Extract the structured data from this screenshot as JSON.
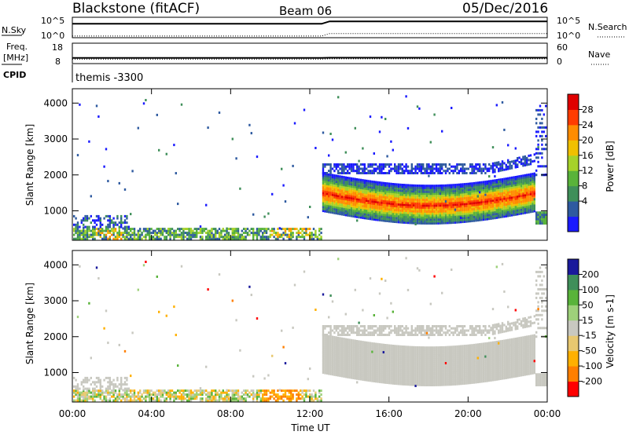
{
  "header": {
    "station": "Blackstone (fitACF)",
    "beam": "Beam 06",
    "date": "05/Dec/2016"
  },
  "colors": {
    "power_scale": [
      "#1a1aff",
      "#2e5aa0",
      "#3f8f5a",
      "#59b33a",
      "#a6d22a",
      "#f0c000",
      "#ff8c00",
      "#ff3c00",
      "#e00000"
    ],
    "velocity_scale": [
      "#ff0000",
      "#ff7f00",
      "#ffb000",
      "#e8c870",
      "#c8c8c0",
      "#9ed07a",
      "#59b33a",
      "#3f8f5a",
      "#1a1a9c"
    ],
    "ground_scatter": "#c8c8c0"
  },
  "chart_data": [
    {
      "type": "line",
      "panel": "noise",
      "left_label": "N.Sky",
      "right_label": "N.Search",
      "left_ticks": [
        "10^5",
        "10^0"
      ],
      "right_ticks": [
        "10^5",
        "10^0"
      ],
      "x": [
        0,
        12.6,
        13,
        24
      ],
      "series": [
        {
          "name": "N.Sky",
          "values": [
            3.4,
            3.4,
            4.0,
            4.0
          ]
        },
        {
          "name": "N.Search",
          "values": [
            0.4,
            0.4,
            1.0,
            1.0
          ]
        }
      ]
    },
    {
      "type": "line",
      "panel": "frequency",
      "left_label": "Freq.",
      "left_unit": "[MHz]",
      "right_label": "Nave",
      "left_ticks": [
        "18",
        "8"
      ],
      "right_ticks": [
        "60",
        "0"
      ],
      "x": [
        0,
        12.6,
        13,
        24
      ],
      "series": [
        {
          "name": "Freq.",
          "values": [
            10.8,
            10.8,
            10.9,
            10.9
          ]
        },
        {
          "name": "Nave",
          "values": [
            13,
            13,
            14,
            14
          ]
        }
      ]
    },
    {
      "type": "text",
      "panel": "cpid",
      "left_label": "CPID",
      "text": "themis -3300"
    },
    {
      "type": "heatmap",
      "panel": "power",
      "ylabel": "Slant Range [km]",
      "colorbar_label": "Power [dB]",
      "colorbar_ticks": [
        "28",
        "24",
        "20",
        "16",
        "12",
        "8",
        "4"
      ],
      "ylim": [
        180,
        4400
      ],
      "y_ticks": [
        "4000",
        "3000",
        "2000",
        "1000"
      ],
      "x_ticks": [
        "00:00",
        "04:00",
        "08:00",
        "12:00",
        "16:00",
        "20:00",
        "00:00"
      ]
    },
    {
      "type": "heatmap",
      "panel": "velocity",
      "ylabel": "Slant Range [km]",
      "colorbar_label": "Velocity [m s-1]",
      "colorbar_ticks": [
        "200",
        "100",
        "50",
        "15",
        "-15",
        "-50",
        "-100",
        "-200"
      ],
      "ylim": [
        180,
        4400
      ],
      "y_ticks": [
        "4000",
        "3000",
        "2000",
        "1000"
      ],
      "x_ticks": [
        "00:00",
        "04:00",
        "08:00",
        "12:00",
        "16:00",
        "20:00",
        "00:00"
      ],
      "xlabel": "Time UT"
    }
  ]
}
